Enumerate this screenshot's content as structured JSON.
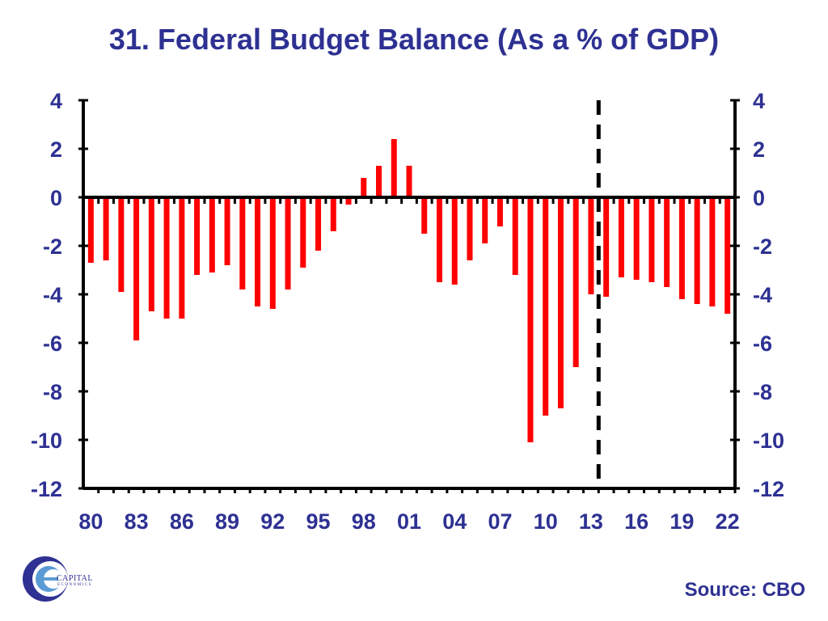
{
  "title": "31. Federal Budget Balance (As a % of GDP)",
  "source": "Source: CBO",
  "logo": {
    "name": "CAPITAL",
    "sub": "ECONOMICS"
  },
  "colors": {
    "bar": "#FF0000",
    "text": "#2E3192",
    "axis": "#000000"
  },
  "chart_data": {
    "type": "bar",
    "ylim": [
      -12,
      4
    ],
    "yticks": [
      4,
      2,
      0,
      -2,
      -4,
      -6,
      -8,
      -10,
      -12
    ],
    "xtick_labels": [
      "80",
      "83",
      "86",
      "89",
      "92",
      "95",
      "98",
      "01",
      "04",
      "07",
      "10",
      "13",
      "16",
      "19",
      "22"
    ],
    "forecast_divider_year": 2013.5,
    "grid": false,
    "series": [
      {
        "x": [
          1980,
          1981,
          1982,
          1983,
          1984,
          1985,
          1986,
          1987,
          1988,
          1989,
          1990,
          1991,
          1992,
          1993,
          1994,
          1995,
          1996,
          1997,
          1998,
          1999,
          2000,
          2001,
          2002,
          2003,
          2004,
          2005,
          2006,
          2007,
          2008,
          2009,
          2010,
          2011,
          2012,
          2013,
          2014,
          2015,
          2016,
          2017,
          2018,
          2019,
          2020,
          2021,
          2022
        ],
        "values": [
          -2.7,
          -2.6,
          -3.9,
          -5.9,
          -4.7,
          -5.0,
          -5.0,
          -3.2,
          -3.1,
          -2.8,
          -3.8,
          -4.5,
          -4.6,
          -3.8,
          -2.9,
          -2.2,
          -1.4,
          -0.3,
          0.8,
          1.3,
          2.4,
          1.3,
          -1.5,
          -3.5,
          -3.6,
          -2.6,
          -1.9,
          -1.2,
          -3.2,
          -10.1,
          -9.0,
          -8.7,
          -7.0,
          -4.0,
          -4.1,
          -3.3,
          -3.4,
          -3.5,
          -3.7,
          -4.2,
          -4.4,
          -4.5,
          -4.8
        ]
      }
    ]
  }
}
